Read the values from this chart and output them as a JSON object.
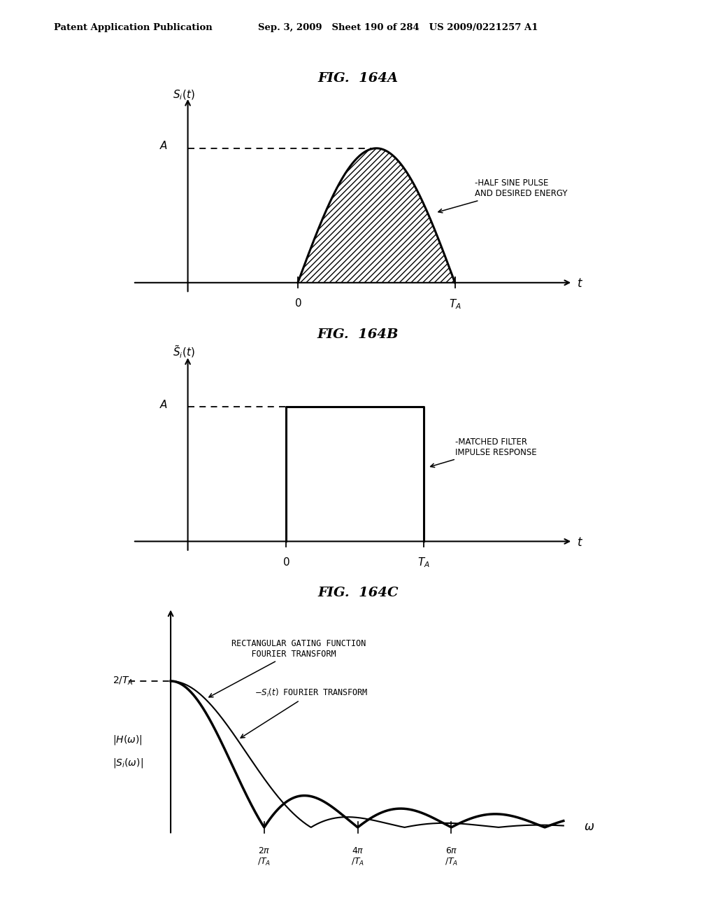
{
  "header_left": "Patent Application Publication",
  "header_mid": "Sep. 3, 2009   Sheet 190 of 284   US 2009/0221257 A1",
  "fig_title_A": "FIG.  164A",
  "fig_title_B": "FIG.  164B",
  "fig_title_C": "FIG.  164C",
  "annotation_A_line1": "HALF SINE PULSE",
  "annotation_A_line2": "AND DESIRED ENERGY",
  "annotation_B_line1": "MATCHED FILTER",
  "annotation_B_line2": "IMPULSE RESPONSE",
  "annotation_C1_line1": "RECTANGULAR GATING FUNCTION",
  "annotation_C1_line2": "    FOURIER TRANSFORM",
  "annotation_C2": "-S_i(t) FOURIER TRANSFORM",
  "bg_color": "#ffffff",
  "figA_ts": 0.38,
  "figA_te": 0.78,
  "figB_ts": 0.35,
  "figB_te": 0.7
}
